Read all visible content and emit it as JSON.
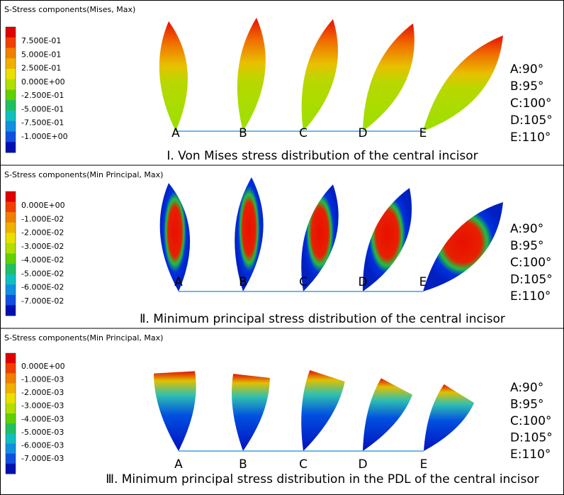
{
  "panels": [
    {
      "legend_title": "S-Stress components(Mises, Max)",
      "legend_labels": [
        "7.500E-01",
        "5.000E-01",
        "2.500E-01",
        "0.000E+00",
        "-2.500E-01",
        "-5.000E-01",
        "-7.500E-01",
        "-1.000E+00"
      ],
      "letters": [
        "A",
        "B",
        "C",
        "D",
        "E"
      ],
      "angles": [
        "A:90°",
        "B:95°",
        "C:100°",
        "D:105°",
        "E:110°"
      ],
      "caption": "Ⅰ. Von Mises stress distribution of the central incisor"
    },
    {
      "legend_title": "S-Stress components(Min Principal, Max)",
      "legend_labels": [
        "0.000E+00",
        "-1.000E-02",
        "-2.000E-02",
        "-3.000E-02",
        "-4.000E-02",
        "-5.000E-02",
        "-6.000E-02",
        "-7.000E-02"
      ],
      "letters": [
        "A",
        "B",
        "C",
        "D",
        "E"
      ],
      "angles": [
        "A:90°",
        "B:95°",
        "C:100°",
        "D:105°",
        "E:110°"
      ],
      "caption": "Ⅱ. Minimum principal stress distribution of the central incisor"
    },
    {
      "legend_title": "S-Stress components(Min Principal, Max)",
      "legend_labels": [
        "0.000E+00",
        "-1.000E-03",
        "-2.000E-03",
        "-3.000E-03",
        "-4.000E-03",
        "-5.000E-03",
        "-6.000E-03",
        "-7.000E-03"
      ],
      "letters": [
        "A",
        "B",
        "C",
        "D",
        "E"
      ],
      "angles": [
        "A:90°",
        "B:95°",
        "C:100°",
        "D:105°",
        "E:110°"
      ],
      "caption": "Ⅲ. Minimum principal stress distribution in the PDL of the central incisor"
    }
  ]
}
